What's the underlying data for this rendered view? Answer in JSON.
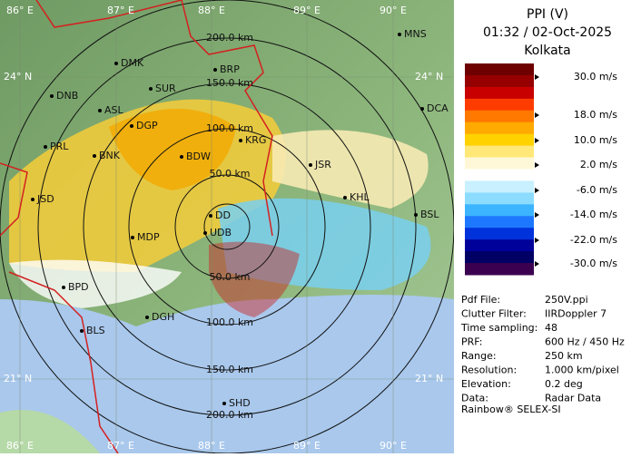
{
  "map": {
    "lon_top": [
      "86° E",
      "87° E",
      "88° E",
      "89° E",
      "90° E"
    ],
    "lon_bottom": [
      "86° E",
      "87° E",
      "88° E",
      "89° E",
      "90° E"
    ],
    "lat_left": [
      "24° N",
      "21° N"
    ],
    "lat_right": [
      "24° N",
      "21° N"
    ],
    "ring_labels": [
      "200.0 km",
      "150.0 km",
      "100.0 km",
      "50.0 km",
      "50.0 km",
      "100.0 km",
      "150.0 km",
      "200.0 km"
    ],
    "cities": [
      "MNS",
      "DMK",
      "BRP",
      "DNB",
      "SUR",
      "ASL",
      "DGP",
      "DCA",
      "PRL",
      "BNK",
      "BDW",
      "KRG",
      "JSR",
      "JSD",
      "KHL",
      "BSL",
      "DD",
      "MDP",
      "UDB",
      "BPD",
      "DGH",
      "BLS",
      "SHD"
    ]
  },
  "panel": {
    "title": "PPI (V)",
    "time": "01:32 / 02-Oct-2025",
    "site": "Kolkata",
    "scale": {
      "colors": [
        "#6e0000",
        "#960000",
        "#c80000",
        "#ff3c00",
        "#ff7800",
        "#ffaa00",
        "#ffd200",
        "#ffe878",
        "#fff8d8",
        "#ffffff",
        "#c8f0ff",
        "#8cdcff",
        "#3cb4ff",
        "#1e78ff",
        "#0032dc",
        "#00009a",
        "#000064",
        "#3c0050"
      ],
      "labels": [
        "30.0 m/s",
        "18.0 m/s",
        "10.0 m/s",
        "2.0 m/s",
        "-6.0 m/s",
        "-14.0 m/s",
        "-22.0 m/s",
        "-30.0 m/s"
      ]
    },
    "info": [
      [
        "Pdf File:",
        "250V.ppi"
      ],
      [
        "Clutter Filter:",
        "IIRDoppler 7"
      ],
      [
        "Time sampling:",
        "48"
      ],
      [
        "PRF:",
        "600 Hz / 450 Hz"
      ],
      [
        "Range:",
        "250 km"
      ],
      [
        "Resolution:",
        "1.000 km/pixel"
      ],
      [
        "Elevation:",
        "0.2 deg"
      ],
      [
        "Data:",
        "Radar Data"
      ]
    ],
    "footer": "Rainbow® SELEX-SI"
  }
}
